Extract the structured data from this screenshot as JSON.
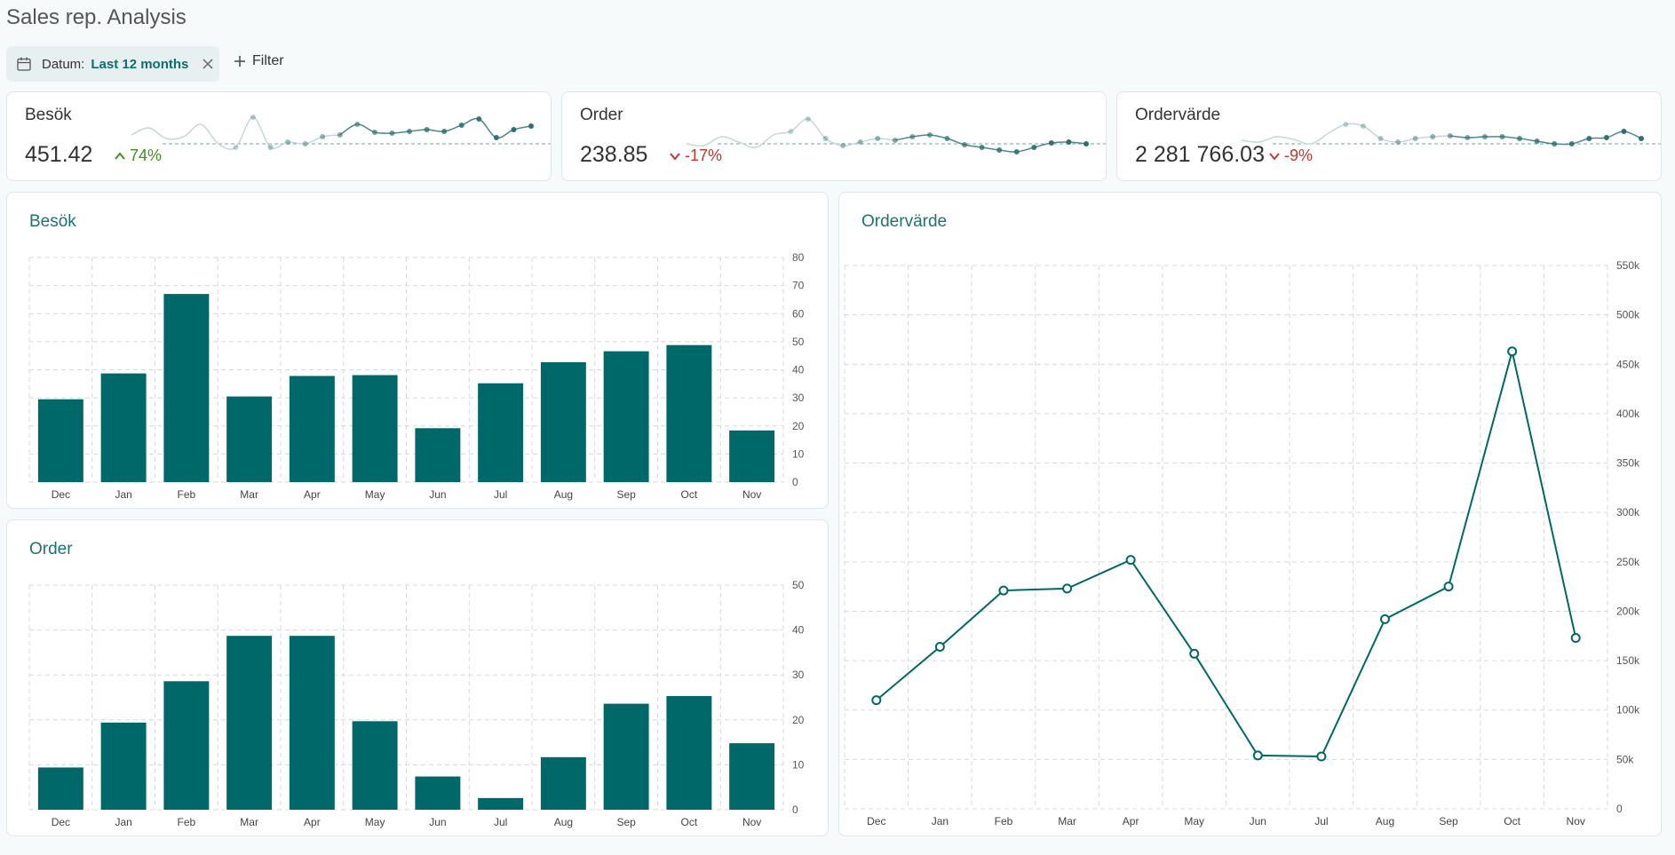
{
  "page": {
    "title": "Sales rep. Analysis"
  },
  "filter": {
    "label": "Datum:",
    "value": "Last 12 months",
    "add_label": "Filter"
  },
  "colors": {
    "bar": "#006868",
    "line": "#006868",
    "up": "#3f8f1f",
    "down": "#c0392b",
    "title": "#1d7373"
  },
  "kpis": [
    {
      "title": "Besök",
      "value": "451.42",
      "delta": "74%",
      "direction": "up",
      "spark": [
        48,
        40,
        52,
        50,
        36,
        58,
        62,
        28,
        62,
        56,
        58,
        50,
        48,
        36,
        45,
        46,
        44,
        42,
        44,
        37,
        30,
        51,
        42,
        38
      ]
    },
    {
      "title": "Order",
      "value": "238.85",
      "delta": "-17%",
      "direction": "down",
      "spark": [
        58,
        60,
        50,
        56,
        62,
        48,
        44,
        30,
        52,
        60,
        56,
        52,
        54,
        50,
        48,
        52,
        59,
        62,
        65,
        67,
        62,
        57,
        56,
        58
      ]
    },
    {
      "title": "Ordervärde",
      "value": "2 281 766.03",
      "delta": "-9%",
      "direction": "down",
      "spark": [
        54,
        56,
        50,
        53,
        58,
        46,
        36,
        38,
        52,
        56,
        52,
        50,
        49,
        51,
        50,
        50,
        52,
        55,
        58,
        58,
        52,
        51,
        44,
        52
      ]
    }
  ],
  "chart_data": [
    {
      "type": "bar",
      "title": "Besök",
      "categories": [
        "Dec",
        "Jan",
        "Feb",
        "Mar",
        "Apr",
        "May",
        "Jun",
        "Jul",
        "Aug",
        "Sep",
        "Oct",
        "Nov"
      ],
      "values": [
        29.5,
        38.7,
        67,
        30.5,
        37.8,
        38.1,
        19.2,
        35.2,
        42.7,
        46.6,
        48.8,
        18.4
      ],
      "ylim": [
        0,
        80
      ],
      "yticks": [
        0,
        10,
        20,
        30,
        40,
        50,
        60,
        70,
        80
      ],
      "ytick_labels": [
        "0",
        "10",
        "20",
        "30",
        "40",
        "50",
        "60",
        "70",
        "80"
      ],
      "grid": true
    },
    {
      "type": "bar",
      "title": "Order",
      "categories": [
        "Dec",
        "Jan",
        "Feb",
        "Mar",
        "Apr",
        "May",
        "Jun",
        "Jul",
        "Aug",
        "Sep",
        "Oct",
        "Nov"
      ],
      "values": [
        9.4,
        19.4,
        28.6,
        38.7,
        38.7,
        19.7,
        7.4,
        2.6,
        11.7,
        23.6,
        25.3,
        14.8
      ],
      "ylim": [
        0,
        50
      ],
      "yticks": [
        0,
        10,
        20,
        30,
        40,
        50
      ],
      "ytick_labels": [
        "0",
        "10",
        "20",
        "30",
        "40",
        "50"
      ],
      "grid": true
    },
    {
      "type": "line",
      "title": "Ordervärde",
      "categories": [
        "Dec",
        "Jan",
        "Feb",
        "Mar",
        "Apr",
        "May",
        "Jun",
        "Jul",
        "Aug",
        "Sep",
        "Oct",
        "Nov"
      ],
      "values": [
        110000,
        164000,
        221000,
        223000,
        252000,
        157000,
        54000,
        53000,
        192000,
        225000,
        463000,
        173000
      ],
      "ylim": [
        0,
        550000
      ],
      "yticks": [
        0,
        50000,
        100000,
        150000,
        200000,
        250000,
        300000,
        350000,
        400000,
        450000,
        500000,
        550000
      ],
      "ytick_labels": [
        "0",
        "50k",
        "100k",
        "150k",
        "200k",
        "250k",
        "300k",
        "350k",
        "400k",
        "450k",
        "500k",
        "550k"
      ],
      "grid": true
    }
  ]
}
